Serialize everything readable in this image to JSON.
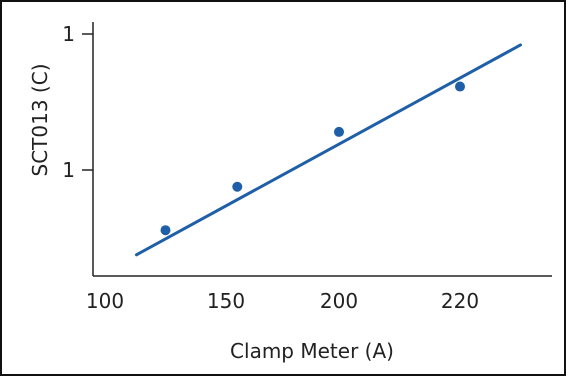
{
  "chart_data": {
    "type": "scatter",
    "title": "",
    "xlabel": "Clamp Meter (A)",
    "ylabel": "SCT013 (C)",
    "x_ticks": [
      "100",
      "150",
      "200",
      "220"
    ],
    "y_ticks": [
      "1",
      "1"
    ],
    "series": [
      {
        "x": [
          125,
          155,
          200,
          220
        ],
        "y": [
          0.2,
          0.43,
          0.72,
          0.96
        ]
      }
    ],
    "fit_line": {
      "x": [
        113,
        230
      ],
      "y": [
        0.07,
        1.18
      ]
    },
    "grid": false,
    "legend": "none",
    "colors": {
      "series": "#1f5fa8",
      "frame": "#111111",
      "axes": "#222222"
    }
  }
}
